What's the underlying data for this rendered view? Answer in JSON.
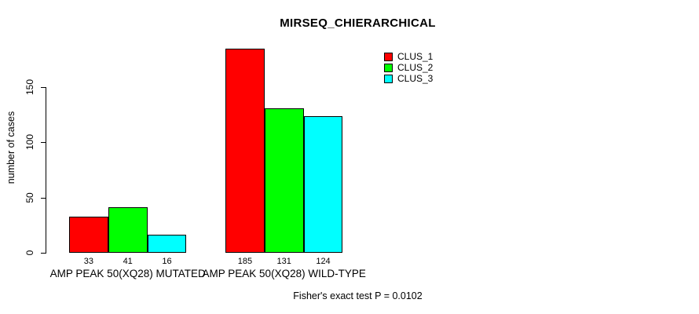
{
  "chart_data": {
    "type": "bar",
    "title": "MIRSEQ_CHIERARCHICAL",
    "ylabel": "number of cases",
    "xlabel": "",
    "annotation": "Fisher's exact test P = 0.0102",
    "categories": [
      "AMP PEAK 50(XQ28) MUTATED",
      "AMP PEAK 50(XQ28) WILD-TYPE"
    ],
    "series": [
      {
        "name": "CLUS_1",
        "color": "#ff0000",
        "values": [
          33,
          185
        ]
      },
      {
        "name": "CLUS_2",
        "color": "#00ff00",
        "values": [
          41,
          131
        ]
      },
      {
        "name": "CLUS_3",
        "color": "#00ffff",
        "values": [
          16,
          124
        ]
      }
    ],
    "value_labels": [
      [
        "33",
        "41",
        "16"
      ],
      [
        "185",
        "131",
        "124"
      ]
    ],
    "yticks": [
      0,
      50,
      100,
      150
    ],
    "ylim": [
      0,
      190
    ],
    "grid": false,
    "legend_position": "top-right",
    "bar_border_color": "#000000",
    "axis_color": "#000000",
    "text_color": "#000000",
    "background_color": "#ffffff"
  }
}
